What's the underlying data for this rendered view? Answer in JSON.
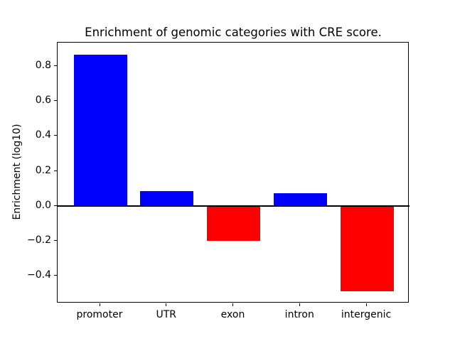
{
  "figure": {
    "background": "#ffffff",
    "text_color": "#000000",
    "axis_color": "#000000"
  },
  "chart_data": {
    "type": "bar",
    "title": "Enrichment of genomic categories with CRE score.",
    "xlabel": "",
    "ylabel": "Enrichment (log10)",
    "categories": [
      "promoter",
      "UTR",
      "exon",
      "intron",
      "intergenic"
    ],
    "values": [
      0.87,
      0.085,
      -0.2,
      0.075,
      -0.49
    ],
    "bar_colors": [
      "#0000ff",
      "#0000ff",
      "#ff0000",
      "#0000ff",
      "#ff0000"
    ],
    "positive_color": "#0000ff",
    "negative_color": "#ff0000",
    "ylim": [
      -0.558,
      0.938
    ],
    "yticks": [
      0.8,
      0.6,
      0.4,
      0.2,
      0.0,
      -0.2,
      -0.4
    ],
    "ytick_labels": [
      "0.8",
      "0.6",
      "0.4",
      "0.2",
      "0.0",
      "−0.2",
      "−0.4"
    ],
    "bar_width_fraction": 0.8,
    "grid": false,
    "legend": null,
    "zero_line": true
  }
}
